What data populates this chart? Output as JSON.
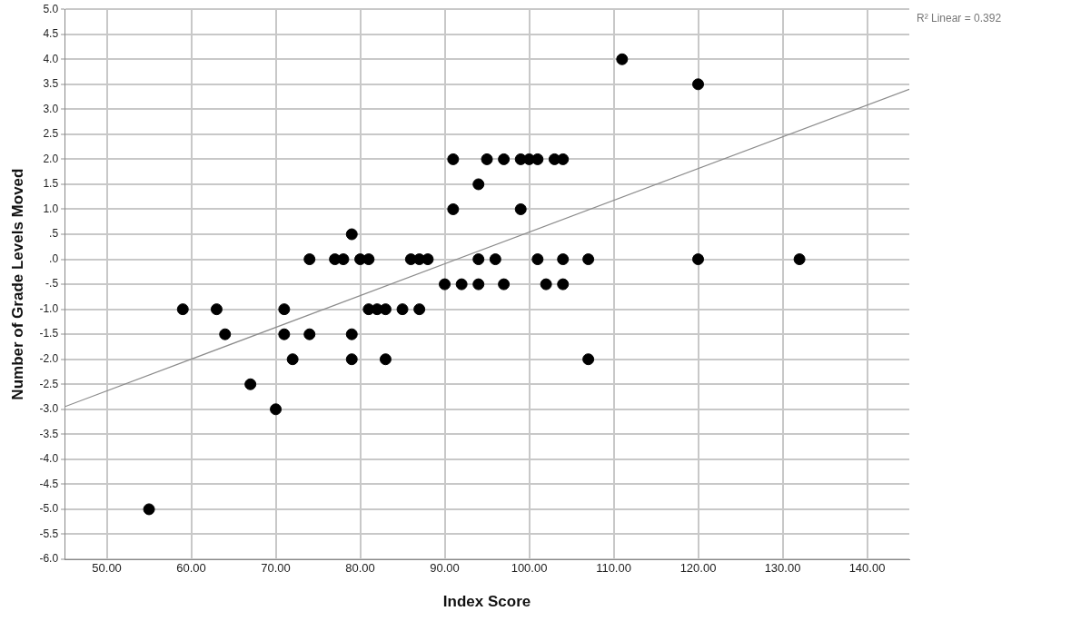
{
  "chart_data": {
    "type": "scatter",
    "xlabel": "Index Score",
    "ylabel": "Number of Grade Levels Moved",
    "annotations": [
      "R² Linear = 0.392"
    ],
    "xlim": [
      45,
      145
    ],
    "ylim": [
      -6,
      5
    ],
    "xticks": [
      {
        "value": 50,
        "label": "50.00"
      },
      {
        "value": 60,
        "label": "60.00"
      },
      {
        "value": 70,
        "label": "70.00"
      },
      {
        "value": 80,
        "label": "80.00"
      },
      {
        "value": 90,
        "label": "90.00"
      },
      {
        "value": 100,
        "label": "100.00"
      },
      {
        "value": 110,
        "label": "110.00"
      },
      {
        "value": 120,
        "label": "120.00"
      },
      {
        "value": 130,
        "label": "130.00"
      },
      {
        "value": 140,
        "label": "140.00"
      }
    ],
    "yticks": [
      {
        "value": -6,
        "label": "-6.0"
      },
      {
        "value": -5.5,
        "label": "-5.5"
      },
      {
        "value": -5,
        "label": "-5.0"
      },
      {
        "value": -4.5,
        "label": "-4.5"
      },
      {
        "value": -4,
        "label": "-4.0"
      },
      {
        "value": -3.5,
        "label": "-3.5"
      },
      {
        "value": -3,
        "label": "-3.0"
      },
      {
        "value": -2.5,
        "label": "-2.5"
      },
      {
        "value": -2,
        "label": "-2.0"
      },
      {
        "value": -1.5,
        "label": "-1.5"
      },
      {
        "value": -1,
        "label": "-1.0"
      },
      {
        "value": -0.5,
        "label": "-.5"
      },
      {
        "value": 0,
        "label": ".0"
      },
      {
        "value": 0.5,
        "label": ".5"
      },
      {
        "value": 1,
        "label": "1.0"
      },
      {
        "value": 1.5,
        "label": "1.5"
      },
      {
        "value": 2,
        "label": "2.0"
      },
      {
        "value": 2.5,
        "label": "2.5"
      },
      {
        "value": 3,
        "label": "3.0"
      },
      {
        "value": 3.5,
        "label": "3.5"
      },
      {
        "value": 4,
        "label": "4.0"
      },
      {
        "value": 4.5,
        "label": "4.5"
      },
      {
        "value": 5,
        "label": "5.0"
      }
    ],
    "grid": true,
    "marker": "circle",
    "series": [
      {
        "color": "#000000",
        "x": [
          55,
          59,
          63,
          64,
          67,
          70,
          71,
          71,
          72,
          74,
          74,
          77,
          78,
          79,
          79,
          79,
          80,
          81,
          81,
          82,
          83,
          83,
          85,
          86,
          87,
          87,
          88,
          90,
          91,
          91,
          92,
          94,
          94,
          94,
          95,
          96,
          97,
          97,
          99,
          99,
          100,
          101,
          101,
          102,
          103,
          104,
          104,
          104,
          107,
          107,
          111,
          120,
          120,
          132
        ],
        "values": [
          -5,
          -1,
          -1,
          -1.5,
          -2.5,
          -3,
          -1,
          -1.5,
          -2,
          0,
          -1.5,
          0,
          0,
          0.5,
          -1.5,
          -2,
          0,
          0,
          -1,
          -1,
          -1,
          -2,
          -1,
          0,
          0,
          -1,
          0,
          -0.5,
          2,
          1,
          -0.5,
          1.5,
          0,
          -0.5,
          2,
          0,
          2,
          -0.5,
          2,
          1,
          2,
          2,
          0,
          -0.5,
          2,
          2,
          0,
          -0.5,
          0,
          -2,
          4,
          3.5,
          0,
          0
        ]
      },
      {
        "type": "line",
        "color": "#8c8c8c",
        "marker": "none",
        "x": [
          45,
          145
        ],
        "values": [
          -2.95,
          3.4
        ]
      }
    ]
  }
}
